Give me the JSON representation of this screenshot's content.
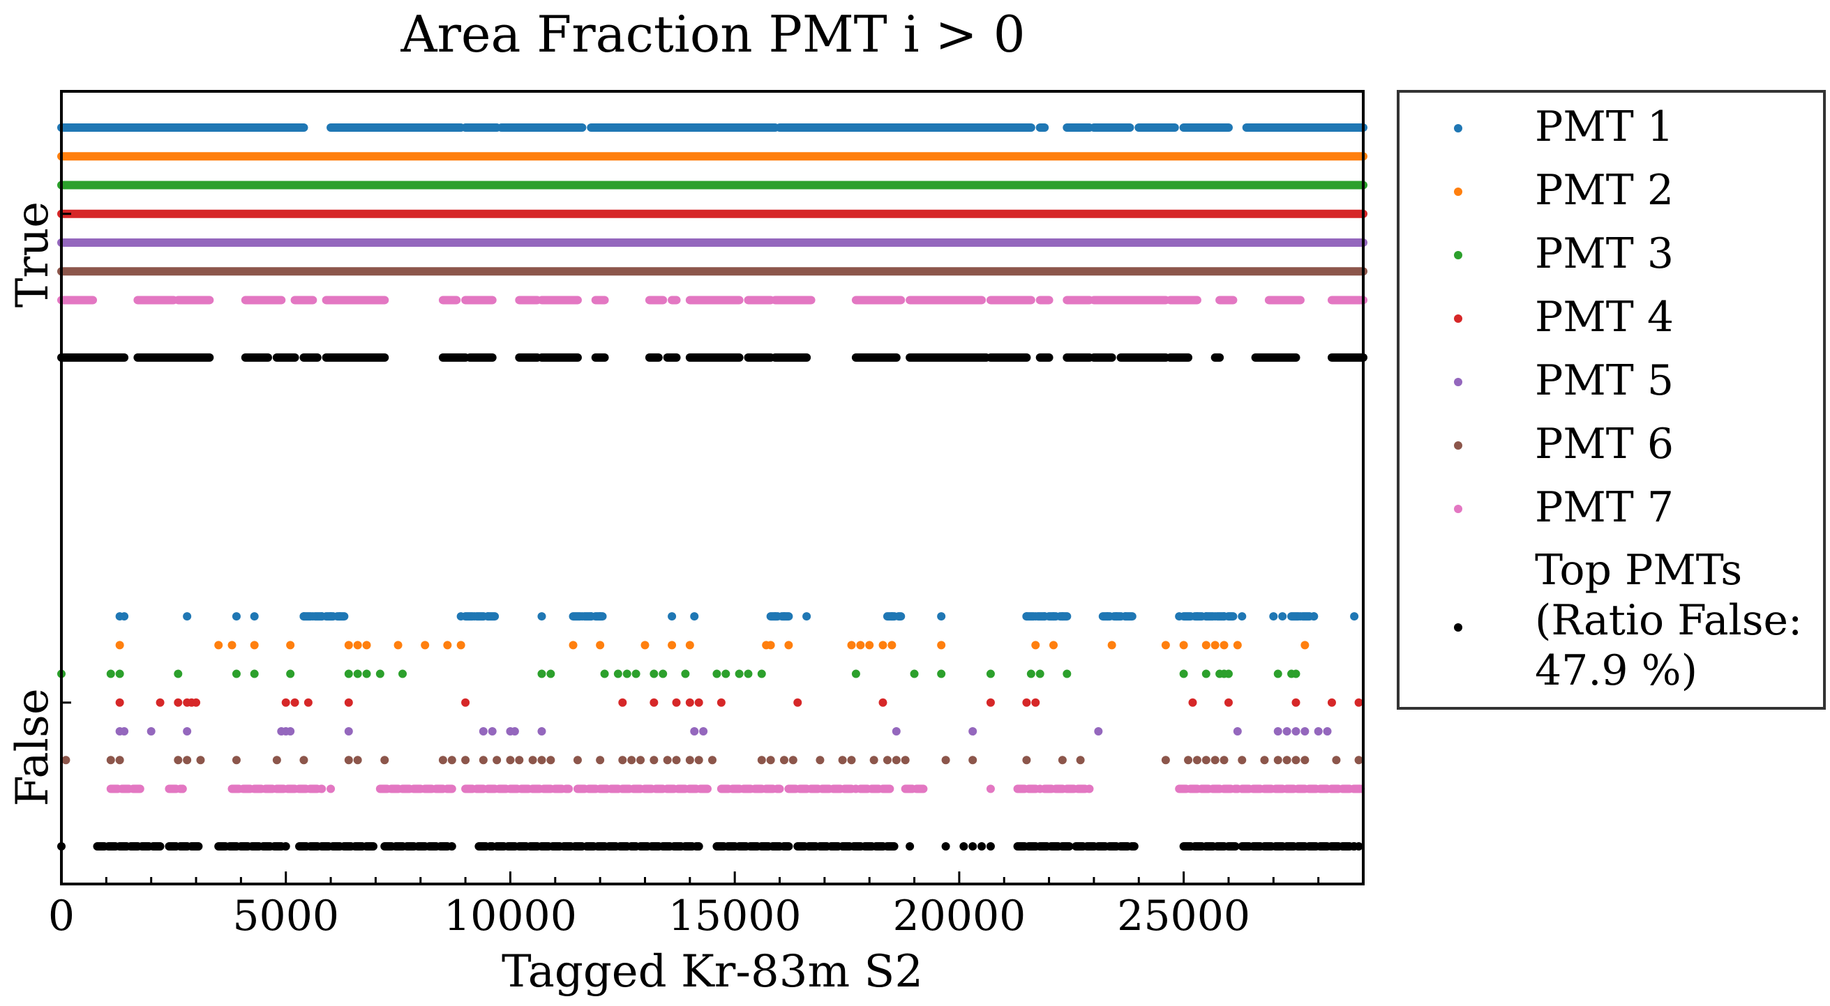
{
  "chart_data": {
    "type": "scatter",
    "title": "Area Fraction PMT i > 0",
    "xlabel": "Tagged Kr-83m S2",
    "ylabel": "",
    "xlim": [
      0,
      29000
    ],
    "x_ticks": [
      0,
      5000,
      10000,
      15000,
      20000,
      25000
    ],
    "y_categories": [
      "False",
      "True"
    ],
    "grid": false,
    "legend_position": "outside-right",
    "series": [
      {
        "name": "PMT 1",
        "color": "#1f77b4",
        "true_segments": [
          [
            0,
            5400
          ],
          [
            6000,
            8900
          ],
          [
            9000,
            9700
          ],
          [
            9800,
            11600
          ],
          [
            11800,
            15900
          ],
          [
            16000,
            21600
          ],
          [
            21800,
            21900
          ],
          [
            22400,
            22900
          ],
          [
            23000,
            23800
          ],
          [
            24000,
            24800
          ],
          [
            25000,
            26000
          ],
          [
            26400,
            29000
          ]
        ],
        "false_points": [
          1300,
          1400,
          2800,
          3900,
          4300,
          5400,
          5600,
          5800,
          6000,
          6200,
          8900,
          9200,
          9500,
          10700,
          11600,
          11800,
          12000,
          13600,
          14100,
          15900,
          16100,
          16600,
          18500,
          19600,
          21500,
          21700,
          21900,
          22100,
          22300,
          23300,
          23500,
          23700,
          24900,
          25300,
          25500,
          25700,
          25900,
          26300,
          27000,
          27200,
          27600,
          27900,
          28800
        ],
        "false_segments": [
          [
            5400,
            6300
          ],
          [
            9000,
            9700
          ],
          [
            11400,
            12100
          ],
          [
            15800,
            16200
          ],
          [
            18400,
            18700
          ],
          [
            21500,
            22400
          ],
          [
            23200,
            23900
          ],
          [
            25000,
            26100
          ],
          [
            27400,
            27900
          ]
        ]
      },
      {
        "name": "PMT 2",
        "color": "#ff7f0e",
        "true_segments": [
          [
            0,
            29000
          ]
        ],
        "false_points": [
          1300,
          3500,
          3800,
          4300,
          5100,
          6400,
          6600,
          6800,
          7500,
          8100,
          8600,
          8900,
          11400,
          12000,
          13000,
          13600,
          14000,
          15700,
          15800,
          16200,
          17600,
          17800,
          18000,
          18300,
          18500,
          19600,
          21700,
          22100,
          23400,
          24600,
          25000,
          25500,
          25700,
          25900,
          26200,
          27700
        ]
      },
      {
        "name": "PMT 3",
        "color": "#2ca02c",
        "true_segments": [
          [
            0,
            29000
          ]
        ],
        "false_points": [
          0,
          1100,
          1300,
          2600,
          3900,
          4300,
          5100,
          6400,
          6600,
          6800,
          7100,
          7600,
          10700,
          10900,
          12100,
          12400,
          12600,
          12800,
          13200,
          13400,
          13900,
          14600,
          14800,
          15100,
          15300,
          15600,
          17700,
          19000,
          19600,
          20700,
          21600,
          21800,
          22400,
          25000,
          25500,
          25800,
          25900,
          26000,
          27100,
          27400,
          27500
        ]
      },
      {
        "name": "PMT 4",
        "color": "#d62728",
        "true_segments": [
          [
            0,
            29000
          ]
        ],
        "false_points": [
          1300,
          2200,
          2600,
          2800,
          2900,
          3000,
          5000,
          5200,
          5500,
          6400,
          9000,
          12500,
          13200,
          13700,
          14000,
          14200,
          14700,
          16400,
          18300,
          20700,
          21500,
          21700,
          25200,
          26000,
          27500,
          28300,
          28900
        ]
      },
      {
        "name": "PMT 5",
        "color": "#9467bd",
        "true_segments": [
          [
            0,
            29000
          ]
        ],
        "false_points": [
          1300,
          1400,
          2000,
          2800,
          4900,
          5000,
          5100,
          6400,
          9400,
          9600,
          10000,
          10100,
          10700,
          14100,
          14300,
          18600,
          20300,
          23100,
          26200,
          27100,
          27300,
          27500,
          27700,
          28000,
          28200
        ]
      },
      {
        "name": "PMT 6",
        "color": "#8c564b",
        "true_segments": [
          [
            0,
            29000
          ]
        ],
        "false_points": [
          100,
          1100,
          1300,
          2600,
          2800,
          3100,
          3900,
          4800,
          5400,
          6400,
          6600,
          7200,
          8500,
          8700,
          9000,
          9400,
          9700,
          10000,
          10200,
          10500,
          10700,
          10900,
          11500,
          12000,
          12500,
          12700,
          12900,
          13200,
          13500,
          13700,
          14000,
          14200,
          14500,
          15600,
          15800,
          16100,
          16300,
          16900,
          17400,
          17600,
          18100,
          18400,
          18600,
          18800,
          19700,
          20300,
          21500,
          22300,
          22700,
          24600,
          25100,
          25300,
          25500,
          25700,
          25900,
          26300,
          26800,
          27100,
          27300,
          27500,
          27700,
          28400,
          28900
        ]
      },
      {
        "name": "PMT 7",
        "color": "#e377c2",
        "true_segments": [
          [
            0,
            700
          ],
          [
            1700,
            2500
          ],
          [
            2600,
            3300
          ],
          [
            4100,
            4900
          ],
          [
            5200,
            5600
          ],
          [
            5900,
            7200
          ],
          [
            8500,
            8800
          ],
          [
            9000,
            9600
          ],
          [
            10200,
            10600
          ],
          [
            10700,
            11500
          ],
          [
            11900,
            12100
          ],
          [
            13100,
            13400
          ],
          [
            13600,
            13700
          ],
          [
            14000,
            15100
          ],
          [
            15300,
            15800
          ],
          [
            15900,
            16700
          ],
          [
            17700,
            18700
          ],
          [
            18900,
            20500
          ],
          [
            20700,
            21600
          ],
          [
            21800,
            22000
          ],
          [
            22400,
            22900
          ],
          [
            23000,
            24600
          ],
          [
            24700,
            25300
          ],
          [
            25800,
            26100
          ],
          [
            26900,
            27600
          ],
          [
            28300,
            29000
          ]
        ],
        "false_segments": [
          [
            1100,
            1800
          ],
          [
            2400,
            2700
          ],
          [
            3800,
            5800
          ],
          [
            7100,
            8700
          ],
          [
            9000,
            9400
          ],
          [
            9500,
            11300
          ],
          [
            11500,
            14400
          ],
          [
            14700,
            16000
          ],
          [
            16200,
            17700
          ],
          [
            17800,
            18500
          ],
          [
            18800,
            19200
          ],
          [
            21300,
            21800
          ],
          [
            21900,
            22900
          ],
          [
            24900,
            26200
          ],
          [
            26300,
            29000
          ]
        ],
        "false_points": [
          2700,
          6000,
          20700
        ]
      },
      {
        "name": "Top PMTs\n(Ratio False:\n 47.9 %)",
        "color": "#000000",
        "true_segments": [
          [
            0,
            1400
          ],
          [
            1700,
            3300
          ],
          [
            4100,
            4600
          ],
          [
            4800,
            5200
          ],
          [
            5400,
            5700
          ],
          [
            5900,
            7200
          ],
          [
            8500,
            9000
          ],
          [
            9100,
            9600
          ],
          [
            10200,
            10600
          ],
          [
            10700,
            11500
          ],
          [
            11900,
            12100
          ],
          [
            13100,
            13300
          ],
          [
            13500,
            13700
          ],
          [
            14000,
            15100
          ],
          [
            15300,
            15800
          ],
          [
            15900,
            16600
          ],
          [
            17700,
            18600
          ],
          [
            18900,
            20600
          ],
          [
            20700,
            21500
          ],
          [
            21800,
            22000
          ],
          [
            22400,
            22900
          ],
          [
            23000,
            23400
          ],
          [
            23600,
            24600
          ],
          [
            24700,
            25100
          ],
          [
            25700,
            25800
          ],
          [
            26600,
            27500
          ],
          [
            28300,
            29000
          ]
        ],
        "false_segments": [
          [
            800,
            2200
          ],
          [
            2400,
            3100
          ],
          [
            3500,
            5000
          ],
          [
            5300,
            7000
          ],
          [
            7200,
            8700
          ],
          [
            9300,
            9600
          ],
          [
            9700,
            11600
          ],
          [
            11700,
            12800
          ],
          [
            12900,
            14200
          ],
          [
            14600,
            16200
          ],
          [
            16400,
            17300
          ],
          [
            17400,
            18600
          ],
          [
            21300,
            22500
          ],
          [
            22600,
            23900
          ],
          [
            25000,
            26200
          ],
          [
            26300,
            28800
          ]
        ],
        "false_points": [
          0,
          2700,
          18900,
          19700,
          20100,
          20300,
          20500,
          20700,
          28900
        ]
      }
    ],
    "row_y_true": [
      1,
      0.96,
      0.92,
      0.88,
      0.84,
      0.8,
      0.76,
      0.68
    ],
    "row_y_false": [
      0.32,
      0.28,
      0.24,
      0.2,
      0.16,
      0.12,
      0.08,
      0.0
    ]
  }
}
